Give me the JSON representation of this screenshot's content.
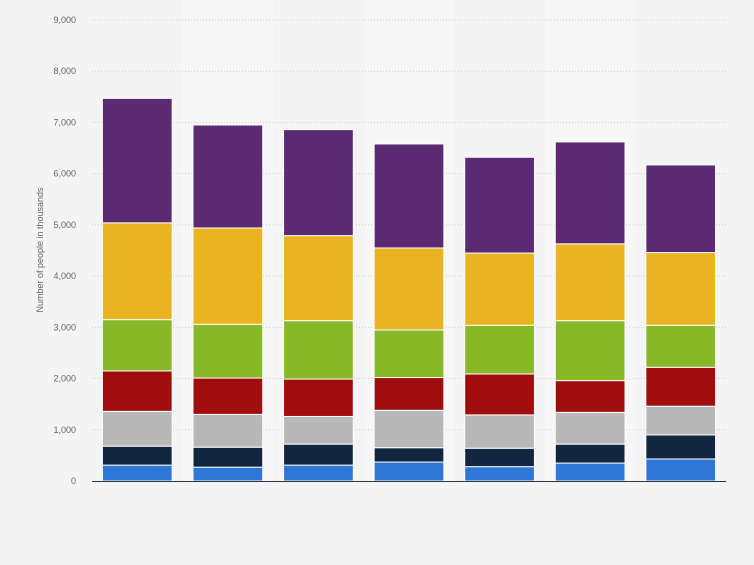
{
  "chart_data": {
    "type": "bar",
    "stacked": true,
    "categories": [
      "",
      "",
      "",
      "",
      "",
      "",
      ""
    ],
    "ylabel": "Number of people in thousands",
    "ylim": [
      0,
      9000
    ],
    "yticks": [
      0,
      1000,
      2000,
      3000,
      4000,
      5000,
      6000,
      7000,
      8000,
      9000
    ],
    "ytick_labels": [
      "0",
      "1,000",
      "2,000",
      "3,000",
      "4,000",
      "5,000",
      "6,000",
      "7,000",
      "8,000",
      "9,000"
    ],
    "grid": true,
    "legend": "none",
    "series": [
      {
        "color": "#2e77d6",
        "values": [
          310,
          270,
          310,
          370,
          280,
          350,
          430
        ]
      },
      {
        "color": "#13263f",
        "values": [
          370,
          390,
          410,
          280,
          360,
          370,
          470
        ]
      },
      {
        "color": "#b8b8b8",
        "values": [
          680,
          640,
          540,
          730,
          650,
          620,
          560
        ]
      },
      {
        "color": "#9f0d0d",
        "values": [
          790,
          710,
          730,
          640,
          800,
          620,
          760
        ]
      },
      {
        "color": "#86b827",
        "values": [
          1000,
          1050,
          1140,
          930,
          950,
          1170,
          820
        ]
      },
      {
        "color": "#e9b322",
        "values": [
          1890,
          1880,
          1660,
          1600,
          1410,
          1500,
          1420
        ]
      },
      {
        "color": "#5b2a72",
        "values": [
          2430,
          2010,
          2070,
          2030,
          1870,
          1990,
          1710
        ]
      }
    ]
  }
}
